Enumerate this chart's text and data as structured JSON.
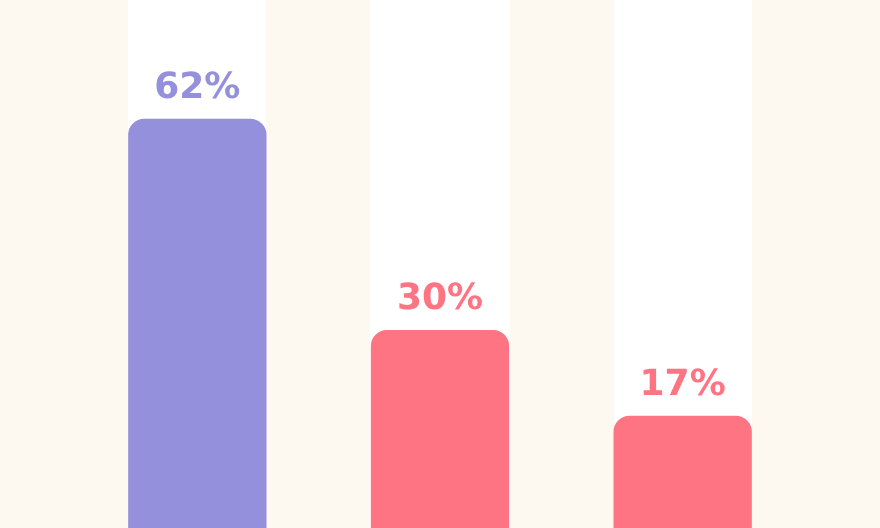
{
  "chart_data": {
    "type": "bar",
    "categories": [
      null,
      null,
      null
    ],
    "values": [
      62,
      30,
      17
    ],
    "colors": [
      "#9590dc",
      "#ff7482",
      "#ff7482"
    ],
    "ylim": [
      0,
      80
    ],
    "data_labels": true,
    "value_labels": [
      "62%",
      "30%",
      "17%"
    ]
  }
}
